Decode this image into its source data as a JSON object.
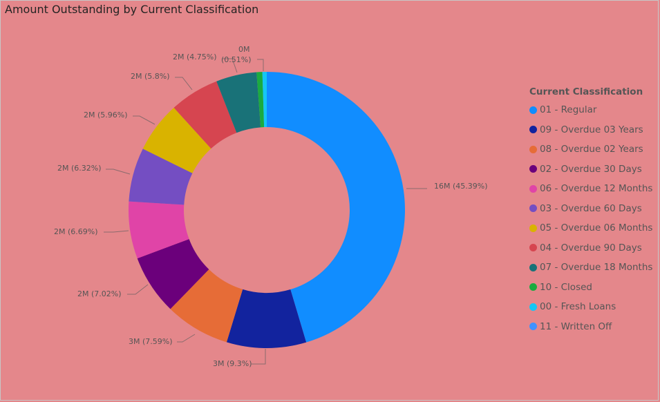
{
  "chart_data": {
    "type": "pie",
    "donut": true,
    "title": "Amount Outstanding by Current Classification",
    "legend_title": "Current Classification",
    "legend_position": "right",
    "series": [
      {
        "name": "01 - Regular",
        "value": 45.39,
        "label": "16M (45.39%)",
        "color": "#118dff"
      },
      {
        "name": "09 - Overdue 03 Years",
        "value": 9.3,
        "label": "3M (9.3%)",
        "color": "#12239e"
      },
      {
        "name": "08 - Overdue 02 Years",
        "value": 7.59,
        "label": "3M (7.59%)",
        "color": "#e66c37"
      },
      {
        "name": "02 - Overdue 30 Days",
        "value": 7.02,
        "label": "2M (7.02%)",
        "color": "#6b007b"
      },
      {
        "name": "06 - Overdue 12 Months",
        "value": 6.69,
        "label": "2M (6.69%)",
        "color": "#e044a7"
      },
      {
        "name": "03 - Overdue 60 Days",
        "value": 6.32,
        "label": "2M (6.32%)",
        "color": "#744ec2"
      },
      {
        "name": "05 - Overdue 06 Months",
        "value": 5.96,
        "label": "2M (5.96%)",
        "color": "#d9b300"
      },
      {
        "name": "04 - Overdue 90 Days",
        "value": 5.8,
        "label": "2M (5.8%)",
        "color": "#d64550"
      },
      {
        "name": "07 - Overdue 18 Months",
        "value": 4.75,
        "label": "2M (4.75%)",
        "color": "#197278"
      },
      {
        "name": "10 - Closed",
        "value": 0.67,
        "label": "",
        "color": "#1aab40"
      },
      {
        "name": "00 - Fresh Loans",
        "value": 0.51,
        "label": "0M (0.51%)",
        "color": "#15c6f4"
      },
      {
        "name": "11 - Written Off",
        "value": 0.0,
        "label": "",
        "color": "#4092ff"
      }
    ]
  }
}
